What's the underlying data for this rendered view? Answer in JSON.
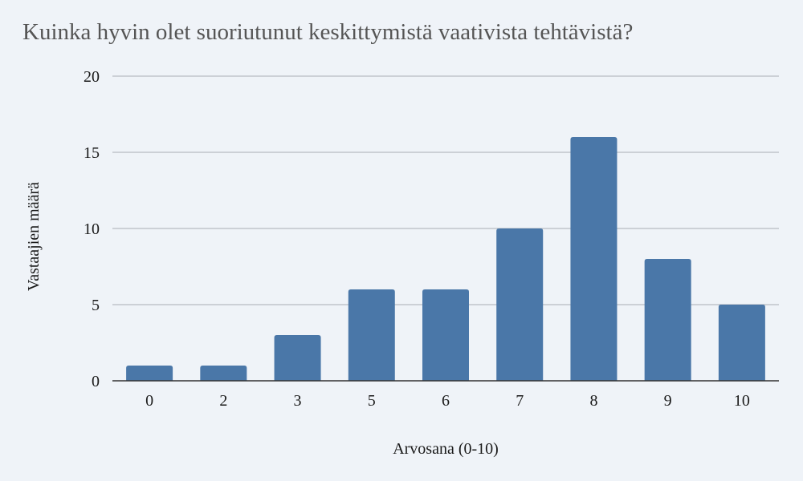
{
  "chart_data": {
    "type": "bar",
    "title": "Kuinka hyvin olet suoriutunut keskittymistä vaativista tehtävistä?",
    "xlabel": "Arvosana (0-10)",
    "ylabel": "Vastaajien määrä",
    "categories": [
      "0",
      "2",
      "3",
      "5",
      "6",
      "7",
      "8",
      "9",
      "10"
    ],
    "values": [
      1,
      1,
      3,
      6,
      6,
      10,
      16,
      8,
      5
    ],
    "ylim": [
      0,
      20
    ],
    "yticks": [
      0,
      5,
      10,
      15,
      20
    ],
    "grid": true,
    "legend": "none",
    "colors": {
      "bar": "#4a77a8",
      "grid": "#b8bcc2",
      "axis": "#333333",
      "background": "#eff3f8"
    }
  }
}
